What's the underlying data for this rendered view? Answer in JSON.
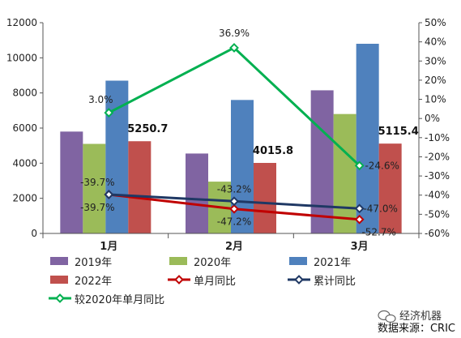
{
  "chart_data": {
    "type": "bar",
    "categories": [
      "1月",
      "2月",
      "3月"
    ],
    "series": [
      {
        "name": "2019年",
        "kind": "bar",
        "axis": "left",
        "color": "#8064a2",
        "values": [
          5800,
          4550,
          8150
        ]
      },
      {
        "name": "2020年",
        "kind": "bar",
        "axis": "left",
        "color": "#9bbb59",
        "values": [
          5100,
          2950,
          6800
        ]
      },
      {
        "name": "2021年",
        "kind": "bar",
        "axis": "left",
        "color": "#4f81bd",
        "values": [
          8700,
          7600,
          10800
        ]
      },
      {
        "name": "2022年",
        "kind": "bar",
        "axis": "left",
        "color": "#c0504d",
        "values": [
          5250.7,
          4015.8,
          5115.4
        ],
        "labels": [
          "5250.7",
          "4015.8",
          "5115.4"
        ]
      },
      {
        "name": "单月同比",
        "kind": "line",
        "axis": "right",
        "color": "#c00000",
        "values": [
          -39.7,
          -47.2,
          -52.7
        ],
        "labels": [
          "-39.7%",
          "-47.2%",
          "-52.7%"
        ]
      },
      {
        "name": "累计同比",
        "kind": "line",
        "axis": "right",
        "color": "#1f3864",
        "values": [
          -39.7,
          -43.2,
          -47.0
        ],
        "labels": [
          "-39.7%",
          "-43.2%",
          "-47.0%"
        ]
      },
      {
        "name": "较2020年单月同比",
        "kind": "line",
        "axis": "right",
        "color": "#00b050",
        "values": [
          3.0,
          36.9,
          -24.6
        ],
        "labels": [
          "3.0%",
          "36.9%",
          "-24.6%"
        ]
      }
    ],
    "y_left": {
      "min": 0,
      "max": 12000,
      "step": 2000,
      "ticks": [
        "0",
        "2000",
        "4000",
        "6000",
        "8000",
        "10000",
        "12000"
      ]
    },
    "y_right": {
      "min": -60,
      "max": 50,
      "step": 10,
      "ticks": [
        "-60%",
        "-50%",
        "-40%",
        "-30%",
        "-20%",
        "-10%",
        "0%",
        "10%",
        "20%",
        "30%",
        "40%",
        "50%"
      ]
    },
    "legend_position": "bottom",
    "grid": false
  },
  "watermark": {
    "text": "经济机器",
    "icon": "wechat-icon"
  },
  "source": "数据来源：CRIC"
}
